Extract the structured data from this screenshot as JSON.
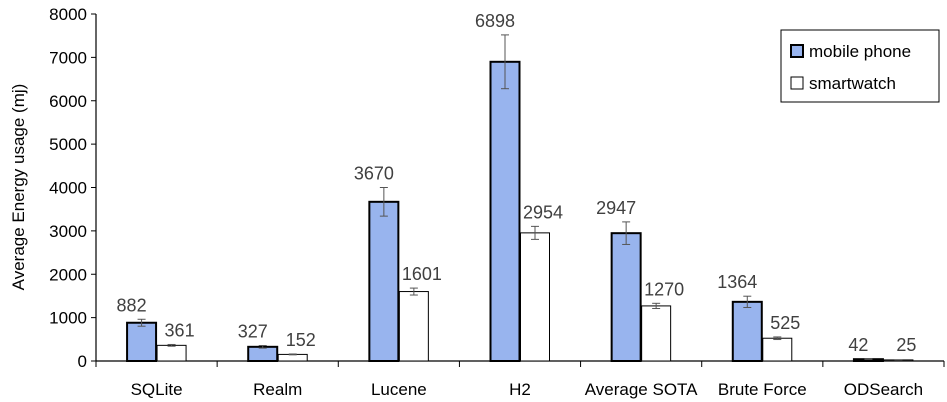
{
  "chart_data": {
    "type": "bar",
    "title": "",
    "xlabel": "",
    "ylabel": "Average Energy usage (mj)",
    "ylim": [
      0,
      8000
    ],
    "ytick_step": 1000,
    "grid": false,
    "legend_position": "top-right",
    "categories": [
      "SQLite",
      "Realm",
      "Lucene",
      "H2",
      "Average SOTA",
      "Brute Force",
      "ODSearch"
    ],
    "series": [
      {
        "name": "mobile phone",
        "color": "#98b4ee",
        "values": [
          882,
          327,
          3670,
          6898,
          2947,
          1364,
          42
        ],
        "error": [
          80,
          30,
          330,
          620,
          260,
          130,
          5
        ]
      },
      {
        "name": "smartwatch",
        "color": "#ffffff",
        "values": [
          361,
          152,
          1601,
          2954,
          1270,
          525,
          25
        ],
        "error": [
          20,
          10,
          80,
          150,
          60,
          30,
          3
        ]
      }
    ]
  }
}
